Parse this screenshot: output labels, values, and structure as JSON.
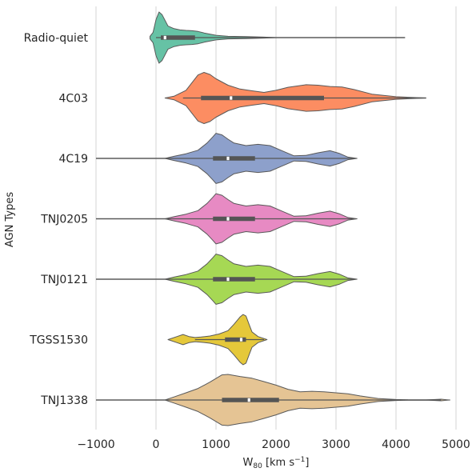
{
  "chart_data": {
    "type": "violin",
    "orientation": "horizontal",
    "xlabel_main": "W",
    "xlabel_sub": "80",
    "xlabel_unit": " [km s",
    "xlabel_exp": "−1",
    "xlabel_close": "]",
    "ylabel": "AGN Types",
    "xlim": [
      -1000,
      5000
    ],
    "xticks": [
      -1000,
      0,
      1000,
      2000,
      3000,
      4000,
      5000
    ],
    "xtick_labels": [
      "−1000",
      "0",
      "1000",
      "2000",
      "3000",
      "4000",
      "5000"
    ],
    "grid": true,
    "categories": [
      "Radio-quiet",
      "4C03",
      "4C19",
      "TNJ0205",
      "TNJ0121",
      "TGSS1530",
      "TNJ1338"
    ],
    "series": [
      {
        "name": "Radio-quiet",
        "color": "#66c2a5",
        "whisker": [
          0,
          4150
        ],
        "q1": 80,
        "median": 150,
        "q3": 650,
        "profile": [
          [
            -100,
            0.05
          ],
          [
            -50,
            0.2
          ],
          [
            0,
            0.7
          ],
          [
            50,
            1.0
          ],
          [
            100,
            0.9
          ],
          [
            200,
            0.45
          ],
          [
            300,
            0.35
          ],
          [
            400,
            0.3
          ],
          [
            500,
            0.28
          ],
          [
            600,
            0.27
          ],
          [
            700,
            0.24
          ],
          [
            800,
            0.18
          ],
          [
            1000,
            0.09
          ],
          [
            1200,
            0.05
          ],
          [
            1500,
            0.04
          ],
          [
            1800,
            0.02
          ],
          [
            2000,
            0.0
          ]
        ]
      },
      {
        "name": "4C03",
        "color": "#fc8d62",
        "whisker": [
          450,
          4500
        ],
        "q1": 750,
        "median": 1250,
        "q3": 2800,
        "profile": [
          [
            150,
            0.0
          ],
          [
            300,
            0.07
          ],
          [
            500,
            0.3
          ],
          [
            700,
            0.9
          ],
          [
            800,
            1.0
          ],
          [
            900,
            0.92
          ],
          [
            1000,
            0.75
          ],
          [
            1200,
            0.5
          ],
          [
            1400,
            0.35
          ],
          [
            1600,
            0.28
          ],
          [
            1800,
            0.22
          ],
          [
            2000,
            0.3
          ],
          [
            2200,
            0.42
          ],
          [
            2500,
            0.52
          ],
          [
            2700,
            0.5
          ],
          [
            2900,
            0.45
          ],
          [
            3100,
            0.43
          ],
          [
            3300,
            0.33
          ],
          [
            3600,
            0.15
          ],
          [
            4000,
            0.05
          ],
          [
            4300,
            0.02
          ],
          [
            4500,
            0.0
          ]
        ]
      },
      {
        "name": "4C19",
        "color": "#8da0cb",
        "whisker": [
          -1000,
          3300
        ],
        "q1": 950,
        "median": 1200,
        "q3": 1650,
        "profile": [
          [
            150,
            0.0
          ],
          [
            300,
            0.08
          ],
          [
            500,
            0.18
          ],
          [
            700,
            0.32
          ],
          [
            850,
            0.6
          ],
          [
            950,
            0.85
          ],
          [
            1000,
            0.98
          ],
          [
            1100,
            0.92
          ],
          [
            1200,
            0.75
          ],
          [
            1300,
            0.6
          ],
          [
            1500,
            0.5
          ],
          [
            1700,
            0.55
          ],
          [
            1900,
            0.5
          ],
          [
            2100,
            0.3
          ],
          [
            2300,
            0.1
          ],
          [
            2500,
            0.12
          ],
          [
            2700,
            0.22
          ],
          [
            2900,
            0.3
          ],
          [
            3050,
            0.2
          ],
          [
            3200,
            0.05
          ],
          [
            3350,
            0.0
          ]
        ]
      },
      {
        "name": "TNJ0205",
        "color": "#e78ac3",
        "whisker": [
          -1000,
          3300
        ],
        "q1": 950,
        "median": 1200,
        "q3": 1650,
        "profile": [
          [
            150,
            0.0
          ],
          [
            300,
            0.08
          ],
          [
            500,
            0.18
          ],
          [
            700,
            0.32
          ],
          [
            850,
            0.6
          ],
          [
            950,
            0.85
          ],
          [
            1000,
            0.98
          ],
          [
            1100,
            0.92
          ],
          [
            1200,
            0.75
          ],
          [
            1300,
            0.6
          ],
          [
            1500,
            0.5
          ],
          [
            1700,
            0.55
          ],
          [
            1900,
            0.5
          ],
          [
            2100,
            0.3
          ],
          [
            2300,
            0.1
          ],
          [
            2500,
            0.12
          ],
          [
            2700,
            0.22
          ],
          [
            2900,
            0.3
          ],
          [
            3050,
            0.2
          ],
          [
            3200,
            0.05
          ],
          [
            3350,
            0.0
          ]
        ]
      },
      {
        "name": "TNJ0121",
        "color": "#a6d854",
        "whisker": [
          -1000,
          3300
        ],
        "q1": 950,
        "median": 1200,
        "q3": 1650,
        "profile": [
          [
            150,
            0.0
          ],
          [
            300,
            0.08
          ],
          [
            500,
            0.18
          ],
          [
            700,
            0.32
          ],
          [
            850,
            0.6
          ],
          [
            950,
            0.85
          ],
          [
            1000,
            0.98
          ],
          [
            1100,
            0.92
          ],
          [
            1200,
            0.75
          ],
          [
            1300,
            0.6
          ],
          [
            1500,
            0.5
          ],
          [
            1700,
            0.55
          ],
          [
            1900,
            0.5
          ],
          [
            2100,
            0.3
          ],
          [
            2300,
            0.1
          ],
          [
            2500,
            0.12
          ],
          [
            2700,
            0.22
          ],
          [
            2900,
            0.3
          ],
          [
            3050,
            0.2
          ],
          [
            3200,
            0.05
          ],
          [
            3350,
            0.0
          ]
        ]
      },
      {
        "name": "TGSS1530",
        "color": "#e5c83a",
        "whisker": [
          650,
          1800
        ],
        "q1": 1150,
        "median": 1420,
        "q3": 1500,
        "profile": [
          [
            200,
            0.0
          ],
          [
            350,
            0.12
          ],
          [
            450,
            0.2
          ],
          [
            550,
            0.12
          ],
          [
            650,
            0.08
          ],
          [
            750,
            0.1
          ],
          [
            900,
            0.14
          ],
          [
            1050,
            0.22
          ],
          [
            1200,
            0.35
          ],
          [
            1300,
            0.6
          ],
          [
            1400,
            0.88
          ],
          [
            1450,
            0.98
          ],
          [
            1500,
            0.92
          ],
          [
            1550,
            0.6
          ],
          [
            1600,
            0.3
          ],
          [
            1700,
            0.12
          ],
          [
            1850,
            0.0
          ]
        ]
      },
      {
        "name": "TNJ1338",
        "color": "#e5c494",
        "whisker": [
          -1000,
          4750
        ],
        "q1": 1100,
        "median": 1550,
        "q3": 2050,
        "profile": [
          [
            150,
            0.0
          ],
          [
            300,
            0.12
          ],
          [
            500,
            0.28
          ],
          [
            700,
            0.45
          ],
          [
            900,
            0.7
          ],
          [
            1100,
            0.98
          ],
          [
            1200,
            1.0
          ],
          [
            1400,
            0.92
          ],
          [
            1600,
            0.85
          ],
          [
            1800,
            0.72
          ],
          [
            2000,
            0.58
          ],
          [
            2200,
            0.42
          ],
          [
            2400,
            0.32
          ],
          [
            2600,
            0.34
          ],
          [
            2800,
            0.32
          ],
          [
            3000,
            0.28
          ],
          [
            3200,
            0.24
          ],
          [
            3400,
            0.16
          ],
          [
            3700,
            0.06
          ],
          [
            4000,
            0.02
          ],
          [
            4200,
            0.005
          ],
          [
            4500,
            0.003
          ],
          [
            4650,
            0.02
          ],
          [
            4750,
            0.03
          ],
          [
            4850,
            0.01
          ],
          [
            4900,
            0.0
          ]
        ]
      }
    ]
  }
}
